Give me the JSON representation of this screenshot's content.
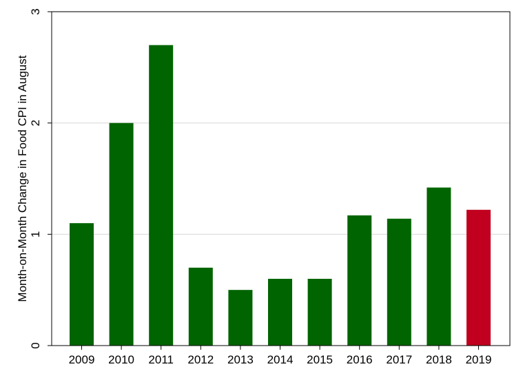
{
  "chart_data": {
    "type": "bar",
    "title": "",
    "xlabel": "",
    "ylabel": "Month-on-Month Change in Food CPI in August",
    "categories": [
      "2009",
      "2010",
      "2011",
      "2012",
      "2013",
      "2014",
      "2015",
      "2016",
      "2017",
      "2018",
      "2019"
    ],
    "values": [
      1.1,
      2.0,
      2.7,
      0.7,
      0.5,
      0.6,
      0.6,
      1.17,
      1.14,
      1.42,
      1.22
    ],
    "ylim": [
      0,
      3
    ],
    "yticks": [
      "0",
      "1",
      "2",
      "3"
    ],
    "grid": true,
    "legend": "none",
    "colors": {
      "bar": "#006400",
      "highlight": "#c0001e",
      "grid": "#d9d9d9"
    },
    "highlight_category": "2019"
  }
}
